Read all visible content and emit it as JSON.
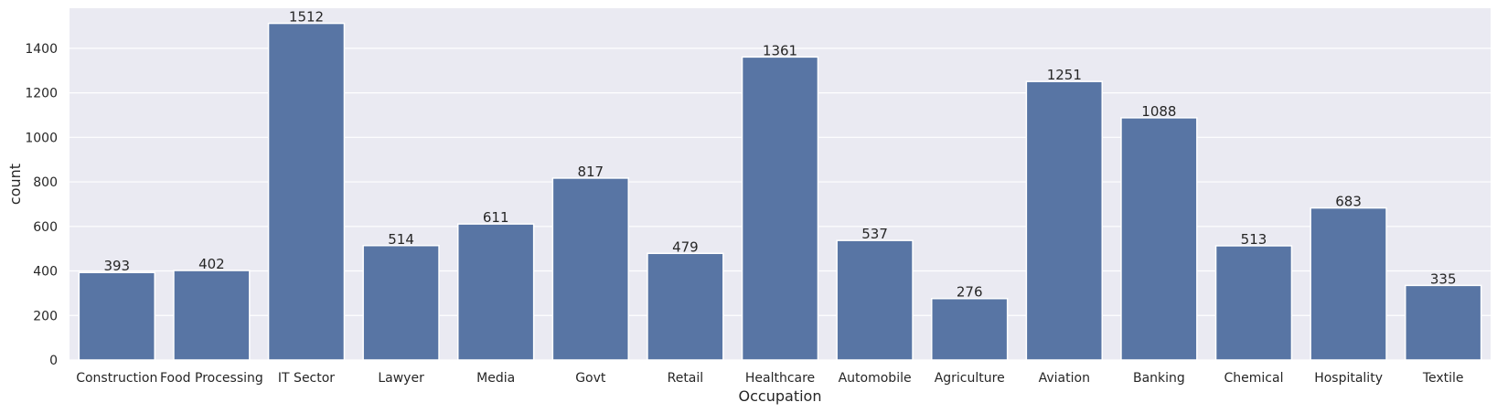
{
  "chart_data": {
    "type": "bar",
    "xlabel": "Occupation",
    "ylabel": "count",
    "categories": [
      "Construction",
      "Food Processing",
      "IT Sector",
      "Lawyer",
      "Media",
      "Govt",
      "Retail",
      "Healthcare",
      "Automobile",
      "Agriculture",
      "Aviation",
      "Banking",
      "Chemical",
      "Hospitality",
      "Textile"
    ],
    "values": [
      393,
      402,
      1512,
      514,
      611,
      817,
      479,
      1361,
      537,
      276,
      1251,
      1088,
      513,
      683,
      335
    ],
    "ylim": [
      0,
      1580
    ],
    "yticks": [
      0,
      200,
      400,
      600,
      800,
      1000,
      1200,
      1400
    ],
    "grid": true,
    "colors": {
      "bar": "#5875a4",
      "plot_background": "#eaeaf2",
      "grid": "#ffffff",
      "text": "#262626"
    }
  }
}
